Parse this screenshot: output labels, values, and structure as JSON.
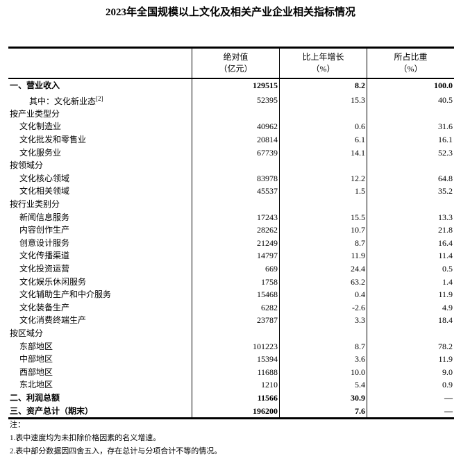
{
  "title": "2023年全国规模以上文化及相关产业企业相关指标情况",
  "headers": [
    {
      "l1": "绝对值",
      "l2": "（亿元）"
    },
    {
      "l1": "比上年增长",
      "l2": "（%）"
    },
    {
      "l1": "所占比重",
      "l2": "（%）"
    }
  ],
  "rows": [
    {
      "label": "一、营业收入",
      "v": "129515",
      "g": "8.2",
      "s": "100.0",
      "bold": true,
      "indent": 0
    },
    {
      "label": "其中：文化新业态",
      "sup": "[2]",
      "v": "52395",
      "g": "15.3",
      "s": "40.5",
      "indent": 2
    },
    {
      "label": "按产业类型分",
      "v": "",
      "g": "",
      "s": "",
      "indent": 0
    },
    {
      "label": "文化制造业",
      "v": "40962",
      "g": "0.6",
      "s": "31.6",
      "indent": 1
    },
    {
      "label": "文化批发和零售业",
      "v": "20814",
      "g": "6.1",
      "s": "16.1",
      "indent": 1
    },
    {
      "label": "文化服务业",
      "v": "67739",
      "g": "14.1",
      "s": "52.3",
      "indent": 1
    },
    {
      "label": "按领域分",
      "v": "",
      "g": "",
      "s": "",
      "indent": 0
    },
    {
      "label": "文化核心领域",
      "v": "83978",
      "g": "12.2",
      "s": "64.8",
      "indent": 1
    },
    {
      "label": "文化相关领域",
      "v": "45537",
      "g": "1.5",
      "s": "35.2",
      "indent": 1
    },
    {
      "label": "按行业类别分",
      "v": "",
      "g": "",
      "s": "",
      "indent": 0
    },
    {
      "label": "新闻信息服务",
      "v": "17243",
      "g": "15.5",
      "s": "13.3",
      "indent": 1
    },
    {
      "label": "内容创作生产",
      "v": "28262",
      "g": "10.7",
      "s": "21.8",
      "indent": 1
    },
    {
      "label": "创意设计服务",
      "v": "21249",
      "g": "8.7",
      "s": "16.4",
      "indent": 1
    },
    {
      "label": "文化传播渠道",
      "v": "14797",
      "g": "11.9",
      "s": "11.4",
      "indent": 1
    },
    {
      "label": "文化投资运营",
      "v": "669",
      "g": "24.4",
      "s": "0.5",
      "indent": 1
    },
    {
      "label": "文化娱乐休闲服务",
      "v": "1758",
      "g": "63.2",
      "s": "1.4",
      "indent": 1
    },
    {
      "label": "文化辅助生产和中介服务",
      "v": "15468",
      "g": "0.4",
      "s": "11.9",
      "indent": 1
    },
    {
      "label": "文化装备生产",
      "v": "6282",
      "g": "-2.6",
      "s": "4.9",
      "indent": 1
    },
    {
      "label": "文化消费终端生产",
      "v": "23787",
      "g": "3.3",
      "s": "18.4",
      "indent": 1
    },
    {
      "label": "按区域分",
      "v": "",
      "g": "",
      "s": "",
      "indent": 0
    },
    {
      "label": "东部地区",
      "v": "101223",
      "g": "8.7",
      "s": "78.2",
      "indent": 1
    },
    {
      "label": "中部地区",
      "v": "15394",
      "g": "3.6",
      "s": "11.9",
      "indent": 1
    },
    {
      "label": "西部地区",
      "v": "11688",
      "g": "10.0",
      "s": "9.0",
      "indent": 1
    },
    {
      "label": "东北地区",
      "v": "1210",
      "g": "5.4",
      "s": "0.9",
      "indent": 1
    },
    {
      "label": "二、利润总额",
      "v": "11566",
      "g": "30.9",
      "s": "—",
      "bold": true,
      "indent": 0
    },
    {
      "label": "三、资产总计（期末）",
      "v": "196200",
      "g": "7.6",
      "s": "—",
      "bold": true,
      "indent": 0
    }
  ],
  "notes": [
    "注：",
    "1.表中速度均为未扣除价格因素的名义增速。",
    "2.表中部分数据因四舍五入，存在总计与分项合计不等的情况。"
  ]
}
